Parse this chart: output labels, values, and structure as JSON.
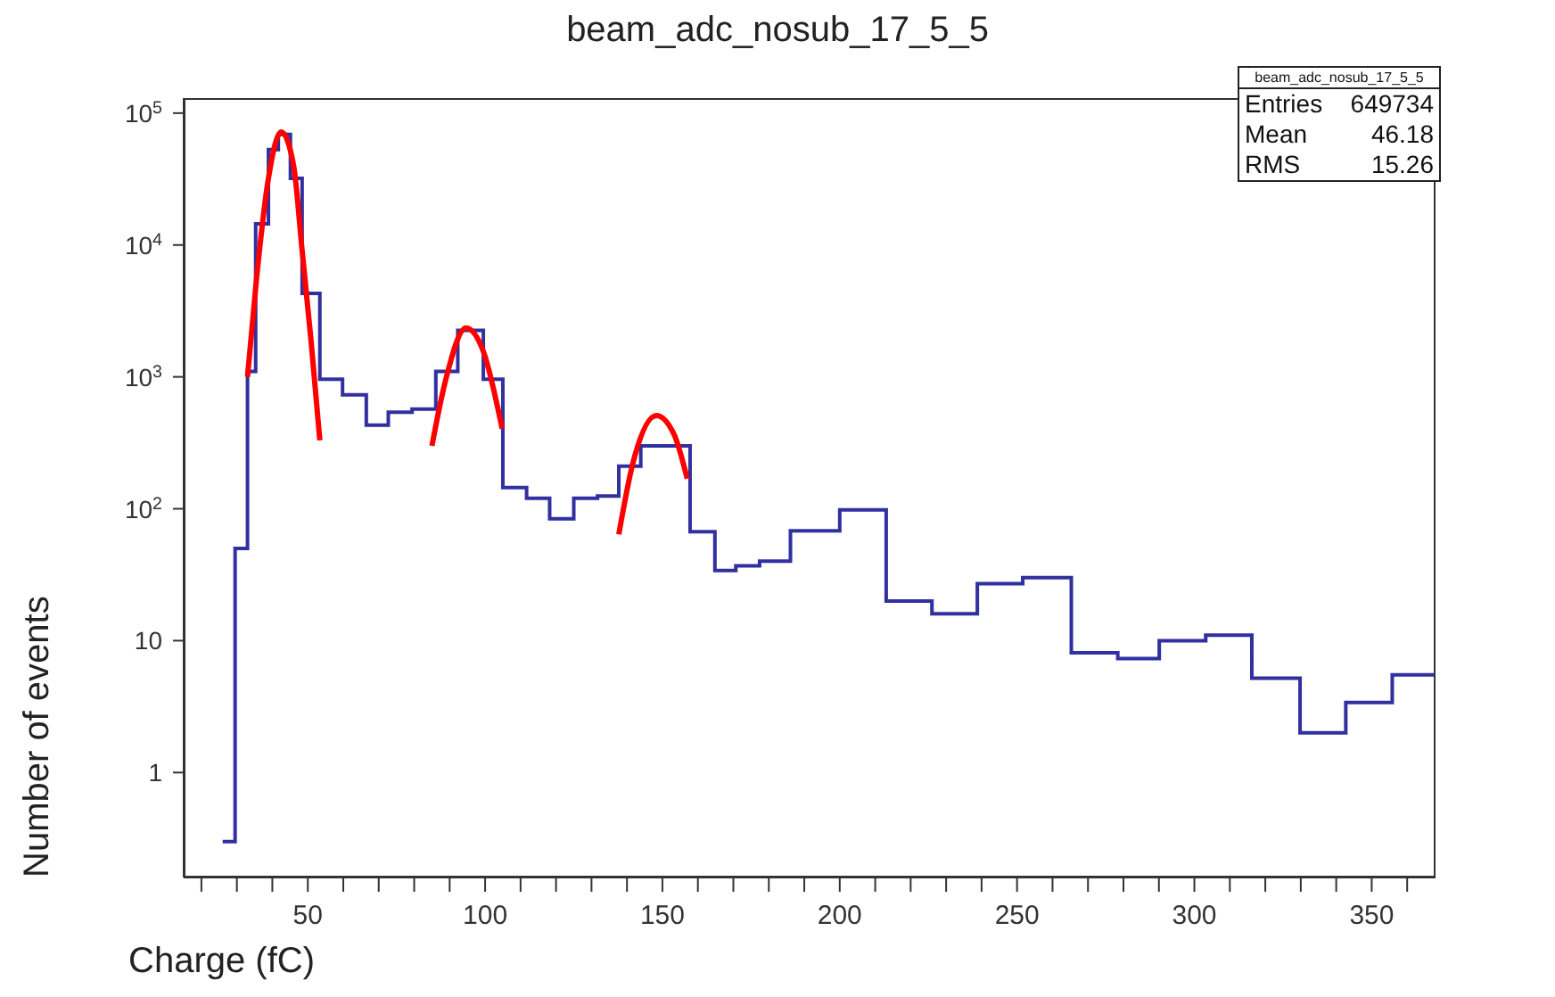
{
  "chart_data": {
    "type": "histogram",
    "title": "beam_adc_nosub_17_5_5",
    "xlabel": "Charge (fC)",
    "ylabel": "Number of events",
    "log": "y",
    "xlim": [
      15,
      368
    ],
    "xticks": [
      {
        "value": 20,
        "label": null
      },
      {
        "value": 30,
        "label": null
      },
      {
        "value": 40,
        "label": null
      },
      50,
      {
        "value": 60,
        "label": null
      },
      {
        "value": 70,
        "label": null
      },
      {
        "value": 80,
        "label": null
      },
      {
        "value": 90,
        "label": null
      },
      100,
      {
        "value": 110,
        "label": null
      },
      {
        "value": 120,
        "label": null
      },
      {
        "value": 130,
        "label": null
      },
      {
        "value": 140,
        "label": null
      },
      150,
      {
        "value": 160,
        "label": null
      },
      {
        "value": 170,
        "label": null
      },
      {
        "value": 180,
        "label": null
      },
      {
        "value": 190,
        "label": null
      },
      200,
      {
        "value": 210,
        "label": null
      },
      {
        "value": 220,
        "label": null
      },
      {
        "value": 230,
        "label": null
      },
      {
        "value": 240,
        "label": null
      },
      250,
      {
        "value": 260,
        "label": null
      },
      {
        "value": 270,
        "label": null
      },
      {
        "value": 280,
        "label": null
      },
      {
        "value": 290,
        "label": null
      },
      300,
      {
        "value": 310,
        "label": null
      },
      {
        "value": 320,
        "label": null
      },
      {
        "value": 330,
        "label": null
      },
      {
        "value": 340,
        "label": null
      },
      350,
      {
        "value": 360,
        "label": null
      }
    ],
    "ylim": [
      0.16,
      130000
    ],
    "yticks": [
      1,
      10,
      {
        "value": 100,
        "label": "10$^{2}$"
      },
      {
        "value": 1000,
        "label": "10$^{3}$"
      },
      {
        "value": 10000,
        "label": "10$^{4}$"
      },
      {
        "value": 100000,
        "label": "10$^{5}$"
      }
    ],
    "annotations": [
      "beam_adc_nosub_17_5_5",
      "Entries",
      "649734",
      "Mean",
      "46.18",
      "RMS",
      "15.26"
    ],
    "series": [
      {
        "color": "#3030a0",
        "bins": [
          26,
          29.5,
          33,
          35.3,
          38.9,
          41.7,
          45.1,
          48.4,
          53.4,
          59.8,
          66.5,
          72.7,
          79.4,
          86.1,
          92.3,
          99.5,
          105,
          111.7,
          118.2,
          125,
          131.7,
          137.7,
          143.9,
          157.8,
          164.8,
          170.7,
          177.4,
          186.1,
          200,
          213.1,
          226,
          238.8,
          251.6,
          265.3,
          278.4,
          290.1,
          303.2,
          316.2,
          329.8,
          342.7,
          355.8,
          368
        ],
        "values": [
          0.3,
          50,
          1100,
          14500,
          53000,
          69000,
          32000,
          4300,
          960,
          730,
          430,
          540,
          570,
          1100,
          2250,
          960,
          145,
          120,
          84,
          120,
          125,
          210,
          300,
          67,
          34,
          37,
          40,
          68,
          98,
          20,
          16,
          27,
          30,
          8.1,
          7.3,
          10,
          11,
          5.2,
          2.0,
          3.4,
          5.5
        ]
      },
      {
        "type": "line",
        "color": "#ff0000",
        "x": [
          33,
          35.5,
          38.9,
          42.5,
          46,
          48.4,
          50.9,
          53.4
        ],
        "values": [
          1000,
          5400,
          32000,
          72000,
          40000,
          9100,
          1900,
          330
        ]
      },
      {
        "type": "line",
        "color": "#ff0000",
        "x": [
          85,
          88.8,
          94.6,
          99.5,
          104.8
        ],
        "values": [
          300,
          930,
          2350,
          1560,
          405
        ]
      },
      {
        "type": "line",
        "color": "#ff0000",
        "x": [
          137.7,
          141.6,
          148.3,
          153.3,
          157
        ],
        "values": [
          64,
          218,
          510,
          365,
          169
        ]
      }
    ]
  }
}
